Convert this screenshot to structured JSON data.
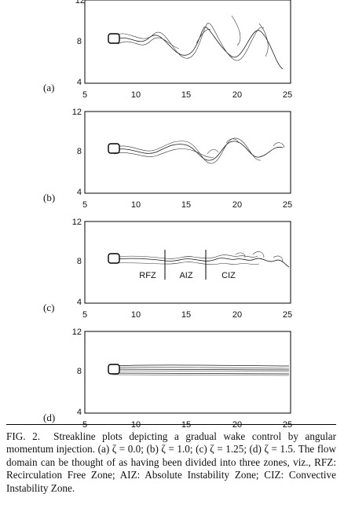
{
  "figure": {
    "x_ticks": [
      "5",
      "10",
      "15",
      "20",
      "25"
    ],
    "y_ticks": [
      "4",
      "8",
      "12"
    ],
    "panels": [
      {
        "label": "(a)",
        "zeta": 0.0,
        "wake_amplitude": 1.0
      },
      {
        "label": "(b)",
        "zeta": 1.0,
        "wake_amplitude": 0.75
      },
      {
        "label": "(c)",
        "zeta": 1.25,
        "wake_amplitude": 0.35,
        "zones": [
          "RFZ",
          "AIZ",
          "CIZ"
        ]
      },
      {
        "label": "(d)",
        "zeta": 1.5,
        "wake_amplitude": 0.0
      }
    ]
  },
  "caption": {
    "lead": "FIG. 2.",
    "text": "Streakline plots depicting a gradual wake control by angular momentum injection. (a) ζ = 0.0; (b) ζ = 1.0; (c) ζ = 1.25; (d) ζ = 1.5. The flow domain can be thought of as having been divided into three zones, viz., RFZ: Recirculation Free Zone; AIZ: Absolute Instability Zone; CIZ: Convective Instability Zone."
  }
}
